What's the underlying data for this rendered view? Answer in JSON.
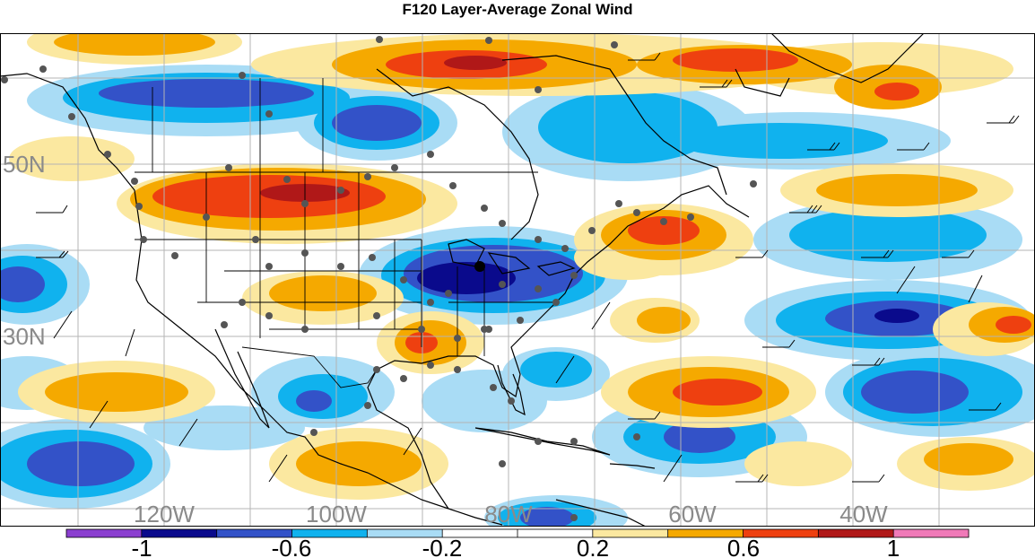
{
  "title": "F120 Layer-Average Zonal Wind",
  "map": {
    "lat_labels": [
      "50N",
      "30N"
    ],
    "lon_labels": [
      "120W",
      "100W",
      "80W",
      "60W",
      "40W"
    ]
  },
  "colorbar": {
    "colors": [
      "#8b3fd0",
      "#0a0a8c",
      "#3352c8",
      "#10b2ee",
      "#a9dcf5",
      "#ffffff",
      "#ffffff",
      "#fbe8a0",
      "#f5a900",
      "#ee4010",
      "#b01818",
      "#f07ab8"
    ],
    "tick_labels": [
      "-1",
      "-0.6",
      "-0.2",
      "0.2",
      "0.6",
      "1"
    ]
  },
  "colors": {
    "strong_negative": "#0a0a8c",
    "negative": "#3352c8",
    "weak_negative": "#10b2ee",
    "faint_negative": "#a9dcf5",
    "faint_positive": "#fbe8a0",
    "positive": "#f5a900",
    "strong_positive": "#ee4010",
    "max_positive": "#b01818",
    "station_dot": "#555555"
  }
}
